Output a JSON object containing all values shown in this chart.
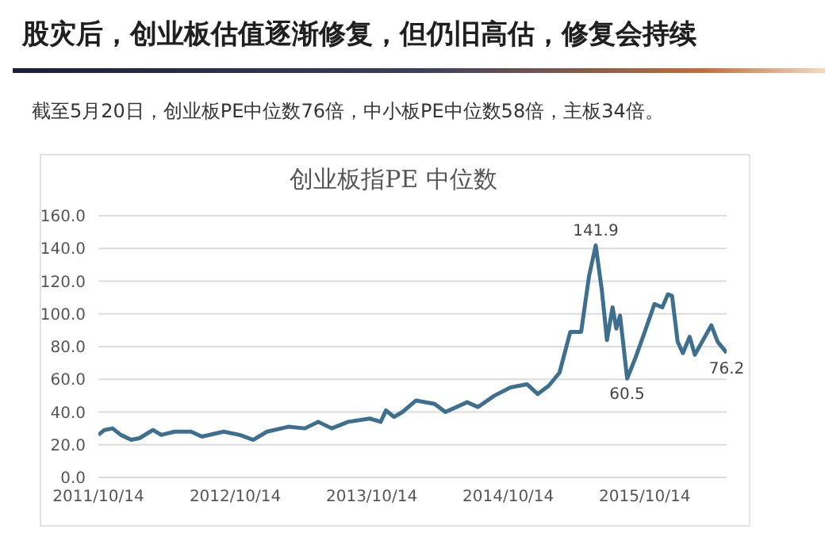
{
  "chart_data": {
    "type": "line",
    "title": "股灾后，创业板估值逐渐修复，但仍旧高估，修复会持续",
    "subtitle": "截至5月20日，创业板PE中位数76倍，中小板PE中位数58倍，主板34倍。",
    "annotations": [
      "创业板指PE 中位数",
      {
        "text": "141.9",
        "x": "2015-06-05",
        "y": 141.9
      },
      {
        "text": "60.5",
        "x": "2015-08-28",
        "y": 60.5
      },
      {
        "text": "76.2",
        "x": "2016-05-20",
        "y": 76.2
      }
    ],
    "x": [
      "2011-10-14",
      "2011-10-30",
      "2011-11-21",
      "2011-12-13",
      "2012-01-10",
      "2012-02-01",
      "2012-03-08",
      "2012-03-30",
      "2012-05-05",
      "2012-06-18",
      "2012-07-17",
      "2012-09-13",
      "2012-10-26",
      "2012-12-01",
      "2013-01-07",
      "2013-03-05",
      "2013-04-18",
      "2013-05-24",
      "2013-06-29",
      "2013-08-12",
      "2013-10-09",
      "2013-11-07",
      "2013-11-21",
      "2013-12-13",
      "2014-01-04",
      "2014-02-09",
      "2014-03-31",
      "2014-04-29",
      "2014-06-26",
      "2014-07-25",
      "2014-09-07",
      "2014-10-20",
      "2014-12-03",
      "2015-01-01",
      "2015-01-30",
      "2015-02-28",
      "2015-03-29",
      "2015-04-27",
      "2015-05-18",
      "2015-06-05",
      "2015-06-21",
      "2015-07-05",
      "2015-07-20",
      "2015-07-30",
      "2015-08-09",
      "2015-08-28",
      "2015-09-19",
      "2015-10-11",
      "2015-11-09",
      "2015-11-30",
      "2015-12-15",
      "2015-12-26",
      "2016-01-10",
      "2016-01-24",
      "2016-02-11",
      "2016-02-25",
      "2016-03-18",
      "2016-04-09",
      "2016-04-26",
      "2016-05-20"
    ],
    "series": [
      {
        "color": "#3e6f8e",
        "values": [
          26,
          29,
          30,
          26,
          23,
          24,
          29,
          26,
          28,
          28,
          25,
          28,
          26,
          23,
          28,
          31,
          30,
          34,
          30,
          34,
          36,
          34,
          41,
          37,
          40,
          47,
          45,
          40,
          46,
          43,
          50,
          55,
          57,
          51,
          56,
          64,
          89,
          89,
          123,
          141.9,
          115,
          84,
          104,
          91,
          99,
          60.5,
          73,
          87,
          106,
          104,
          112,
          111,
          83,
          76,
          86,
          75,
          84,
          93,
          83,
          76.2
        ]
      }
    ],
    "xlim": [
      "2011-10-14",
      "2016-05-20"
    ],
    "xticks": [
      {
        "value": "2011-10-14",
        "label": "2011/10/14"
      },
      {
        "value": "2012-10-14",
        "label": "2012/10/14"
      },
      {
        "value": "2013-10-14",
        "label": "2013/10/14"
      },
      {
        "value": "2014-10-14",
        "label": "2014/10/14"
      },
      {
        "value": "2015-10-14",
        "label": "2015/10/14"
      }
    ],
    "ylim": [
      0,
      160
    ],
    "yticks": [
      {
        "value": 0,
        "label": "0.0"
      },
      {
        "value": 20,
        "label": "20.0"
      },
      {
        "value": 40,
        "label": "40.0"
      },
      {
        "value": 60,
        "label": "60.0"
      },
      {
        "value": 80,
        "label": "80.0"
      },
      {
        "value": 100,
        "label": "100.0"
      },
      {
        "value": 120,
        "label": "120.0"
      },
      {
        "value": 140,
        "label": "140.0"
      },
      {
        "value": 160,
        "label": "160.0"
      }
    ],
    "grid": "y",
    "marker": "none",
    "line_style": "solid"
  }
}
